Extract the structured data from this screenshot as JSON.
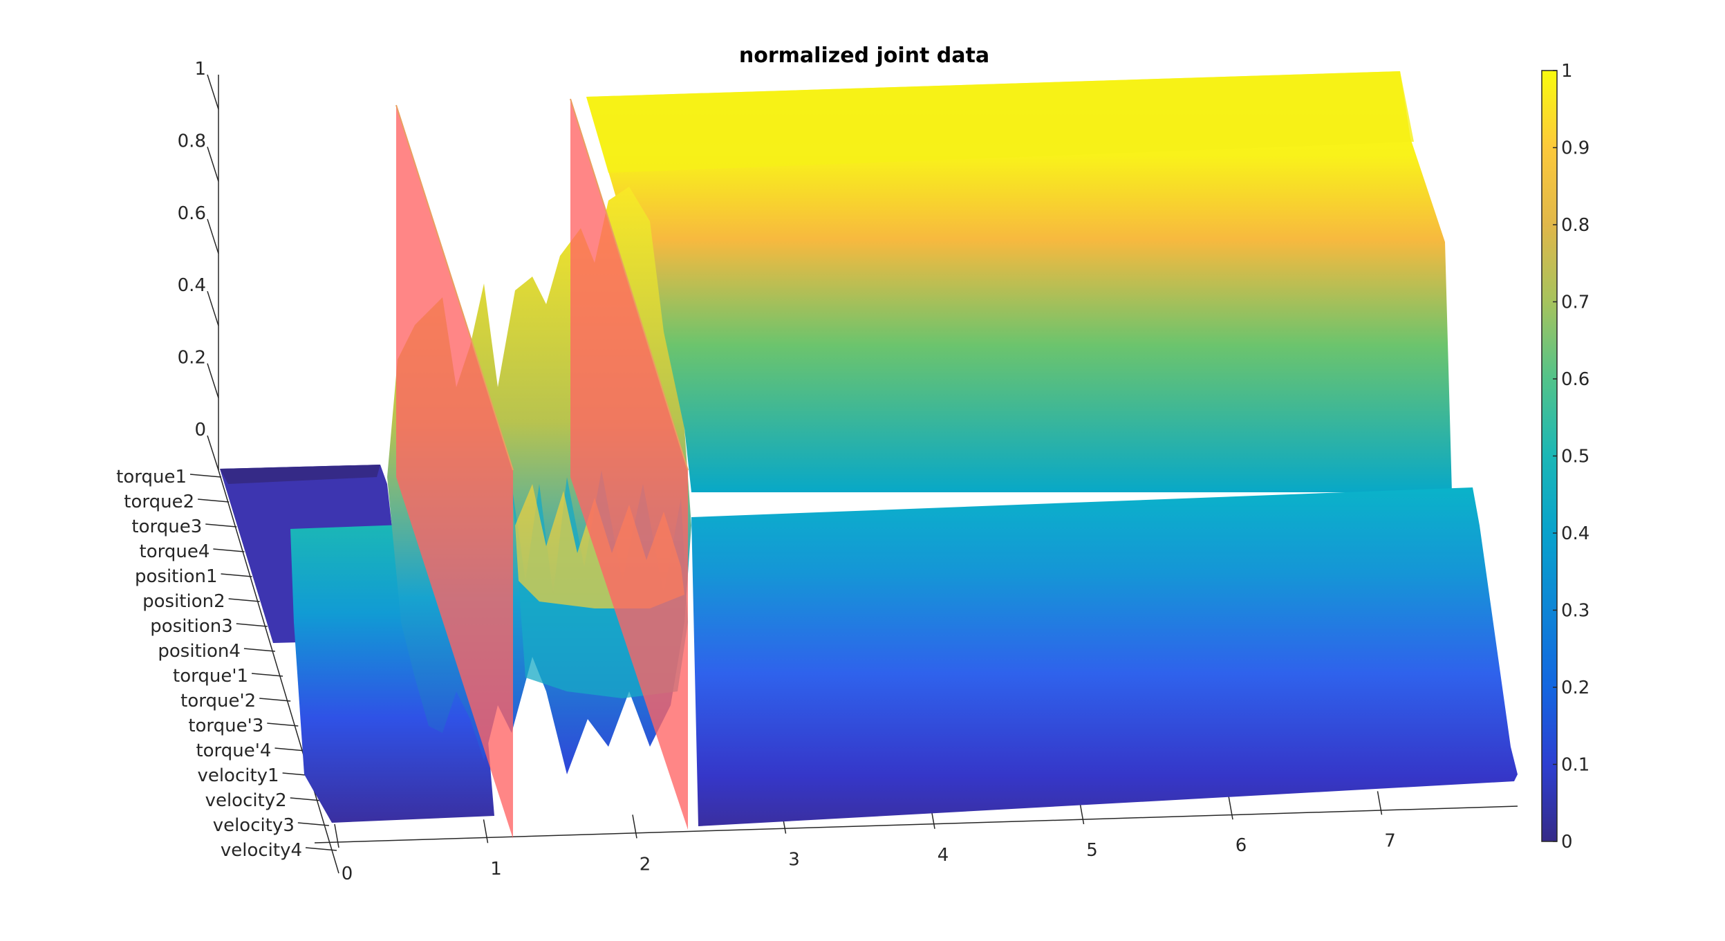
{
  "chart_data": {
    "type": "surface3d",
    "title": "normalized joint data",
    "xlabel": "",
    "ylabel": "",
    "zlabel": "",
    "x_ticks": [
      "0",
      "1",
      "2",
      "3",
      "4",
      "5",
      "6",
      "7"
    ],
    "xlim": [
      0,
      8
    ],
    "y_categories": [
      "torque1",
      "torque2",
      "torque3",
      "torque4",
      "position1",
      "position2",
      "position3",
      "position4",
      "torque'1",
      "torque'2",
      "torque'3",
      "torque'4",
      "velocity1",
      "velocity2",
      "velocity3",
      "velocity4"
    ],
    "z_ticks": [
      "0",
      "0.2",
      "0.4",
      "0.6",
      "0.8",
      "1"
    ],
    "zlim": [
      0,
      1
    ],
    "colorbar": {
      "colormap": "parula",
      "ticks": [
        "0",
        "0.1",
        "0.2",
        "0.3",
        "0.4",
        "0.5",
        "0.6",
        "0.7",
        "0.8",
        "0.9",
        "1"
      ],
      "range": [
        0,
        1
      ]
    },
    "segment_boundaries": [
      1.1,
      2.3
    ],
    "plane_color": "#ff6464",
    "series": [
      {
        "name": "torque1",
        "level_by_segment": [
          0.05,
          0.35,
          1.0
        ]
      },
      {
        "name": "position1",
        "level_by_segment": [
          0.03,
          0.35,
          0.95
        ]
      },
      {
        "name": "torque'1",
        "level_by_segment": [
          0.45,
          0.4,
          0.5
        ]
      },
      {
        "name": "velocity4",
        "level_by_segment": [
          0.05,
          0.15,
          0.05
        ]
      }
    ]
  }
}
